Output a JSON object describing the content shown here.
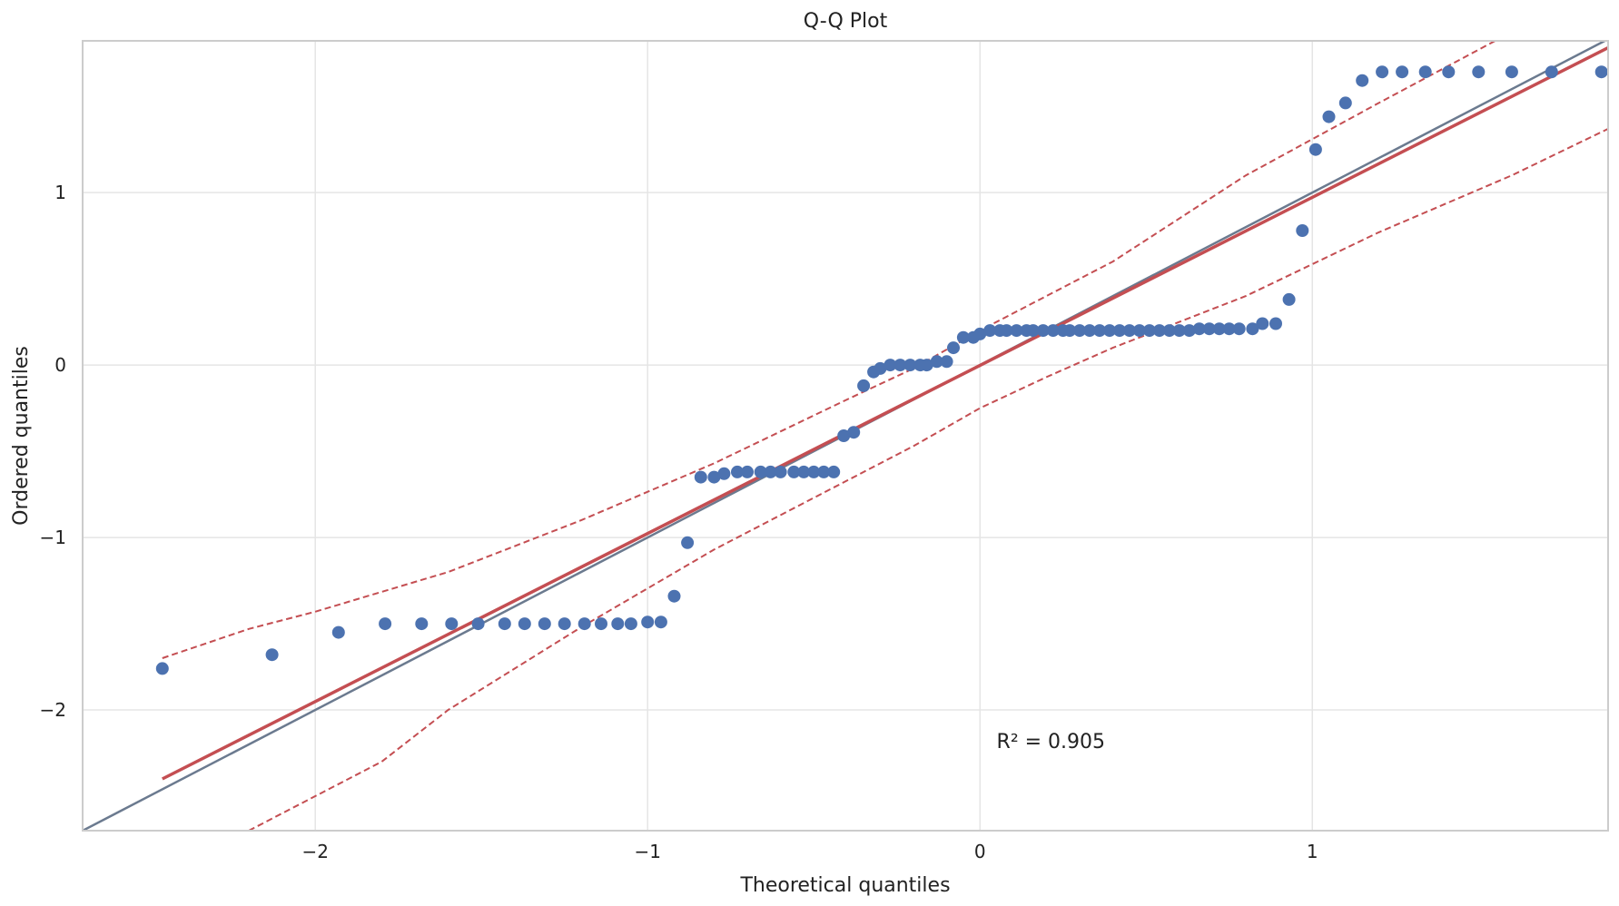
{
  "chart_data": {
    "type": "scatter",
    "title": "Q-Q Plot",
    "xlabel": "Theoretical quantiles",
    "ylabel": "Ordered quantiles",
    "xlim": [
      -2.7,
      1.89
    ],
    "ylim": [
      -2.7,
      1.88
    ],
    "xticks": [
      -2,
      -1,
      0,
      1
    ],
    "yticks": [
      -2,
      -1,
      0,
      1
    ],
    "tick_labels_x": [
      "−2",
      "−1",
      "0",
      "1"
    ],
    "tick_labels_y": [
      "−2",
      "−1",
      "0",
      "1"
    ],
    "grid": true,
    "annotation": {
      "text": "R² = 0.905",
      "x": 0.05,
      "y": -2.22
    },
    "colors": {
      "points": "#4c72b0",
      "fit_line": "#c44e52",
      "reference_line": "#6b7a8f",
      "confidence_band": "#c44e52",
      "grid": "#e5e5e5",
      "frame": "#cccccc"
    },
    "points": {
      "x": [
        -2.46,
        -2.13,
        -1.93,
        -1.79,
        -1.68,
        -1.59,
        -1.51,
        -1.43,
        -1.37,
        -1.31,
        -1.25,
        -1.19,
        -1.14,
        -1.09,
        -1.05,
        -1.0,
        -0.96,
        -0.92,
        -0.88,
        -0.84,
        -0.8,
        -0.77,
        -0.73,
        -0.7,
        -0.66,
        -0.63,
        -0.6,
        -0.56,
        -0.53,
        -0.5,
        -0.47,
        -0.44,
        -0.41,
        -0.38,
        -0.35,
        -0.32,
        -0.3,
        -0.27,
        -0.24,
        -0.21,
        -0.18,
        -0.16,
        -0.13,
        -0.1,
        -0.08,
        -0.05,
        -0.02,
        0.0,
        0.03,
        0.06,
        0.08,
        0.11,
        0.14,
        0.16,
        0.19,
        0.22,
        0.25,
        0.27,
        0.3,
        0.33,
        0.36,
        0.39,
        0.42,
        0.45,
        0.48,
        0.51,
        0.54,
        0.57,
        0.6,
        0.63,
        0.66,
        0.69,
        0.72,
        0.75,
        0.78,
        0.82,
        0.85,
        0.89,
        0.93,
        0.97,
        1.01,
        1.05,
        1.1,
        1.15,
        1.21,
        1.27,
        1.34,
        1.41,
        1.5,
        1.6,
        1.72,
        1.87
      ],
      "y": [
        -1.76,
        -1.68,
        -1.55,
        -1.5,
        -1.5,
        -1.5,
        -1.5,
        -1.5,
        -1.5,
        -1.5,
        -1.5,
        -1.5,
        -1.5,
        -1.5,
        -1.5,
        -1.49,
        -1.49,
        -1.34,
        -1.03,
        -0.65,
        -0.65,
        -0.63,
        -0.62,
        -0.62,
        -0.62,
        -0.62,
        -0.62,
        -0.62,
        -0.62,
        -0.62,
        -0.62,
        -0.62,
        -0.41,
        -0.39,
        -0.12,
        -0.04,
        -0.02,
        0.0,
        0.0,
        0.0,
        0.0,
        0.0,
        0.02,
        0.02,
        0.1,
        0.16,
        0.16,
        0.18,
        0.2,
        0.2,
        0.2,
        0.2,
        0.2,
        0.2,
        0.2,
        0.2,
        0.2,
        0.2,
        0.2,
        0.2,
        0.2,
        0.2,
        0.2,
        0.2,
        0.2,
        0.2,
        0.2,
        0.2,
        0.2,
        0.2,
        0.21,
        0.21,
        0.21,
        0.21,
        0.21,
        0.21,
        0.24,
        0.24,
        0.38,
        0.78,
        1.25,
        1.44,
        1.52,
        1.65,
        1.7,
        1.7,
        1.7,
        1.7,
        1.7,
        1.7,
        1.7,
        1.7
      ]
    },
    "reference_line": {
      "x": [
        -2.7,
        1.89
      ],
      "y": [
        -2.7,
        1.89
      ]
    },
    "fit_line": {
      "x": [
        -2.46,
        1.89
      ],
      "y": [
        -2.4,
        1.84
      ]
    },
    "confidence_band": {
      "upper": {
        "x": [
          -2.46,
          -2.2,
          -2.0,
          -1.6,
          -1.2,
          -0.8,
          -0.4,
          -0.2,
          0.0,
          0.2,
          0.4,
          0.8,
          1.2,
          1.55
        ],
        "y": [
          -1.7,
          -1.53,
          -1.43,
          -1.2,
          -0.9,
          -0.57,
          -0.2,
          -0.02,
          0.2,
          0.4,
          0.6,
          1.1,
          1.52,
          1.88
        ]
      },
      "lower": {
        "x": [
          -2.2,
          -1.8,
          -1.6,
          -1.2,
          -0.8,
          -0.4,
          -0.2,
          0.0,
          0.2,
          0.4,
          0.8,
          1.2,
          1.6,
          1.89
        ],
        "y": [
          -2.7,
          -2.3,
          -2.0,
          -1.52,
          -1.07,
          -0.67,
          -0.47,
          -0.25,
          -0.07,
          0.1,
          0.4,
          0.77,
          1.1,
          1.37
        ]
      }
    }
  }
}
